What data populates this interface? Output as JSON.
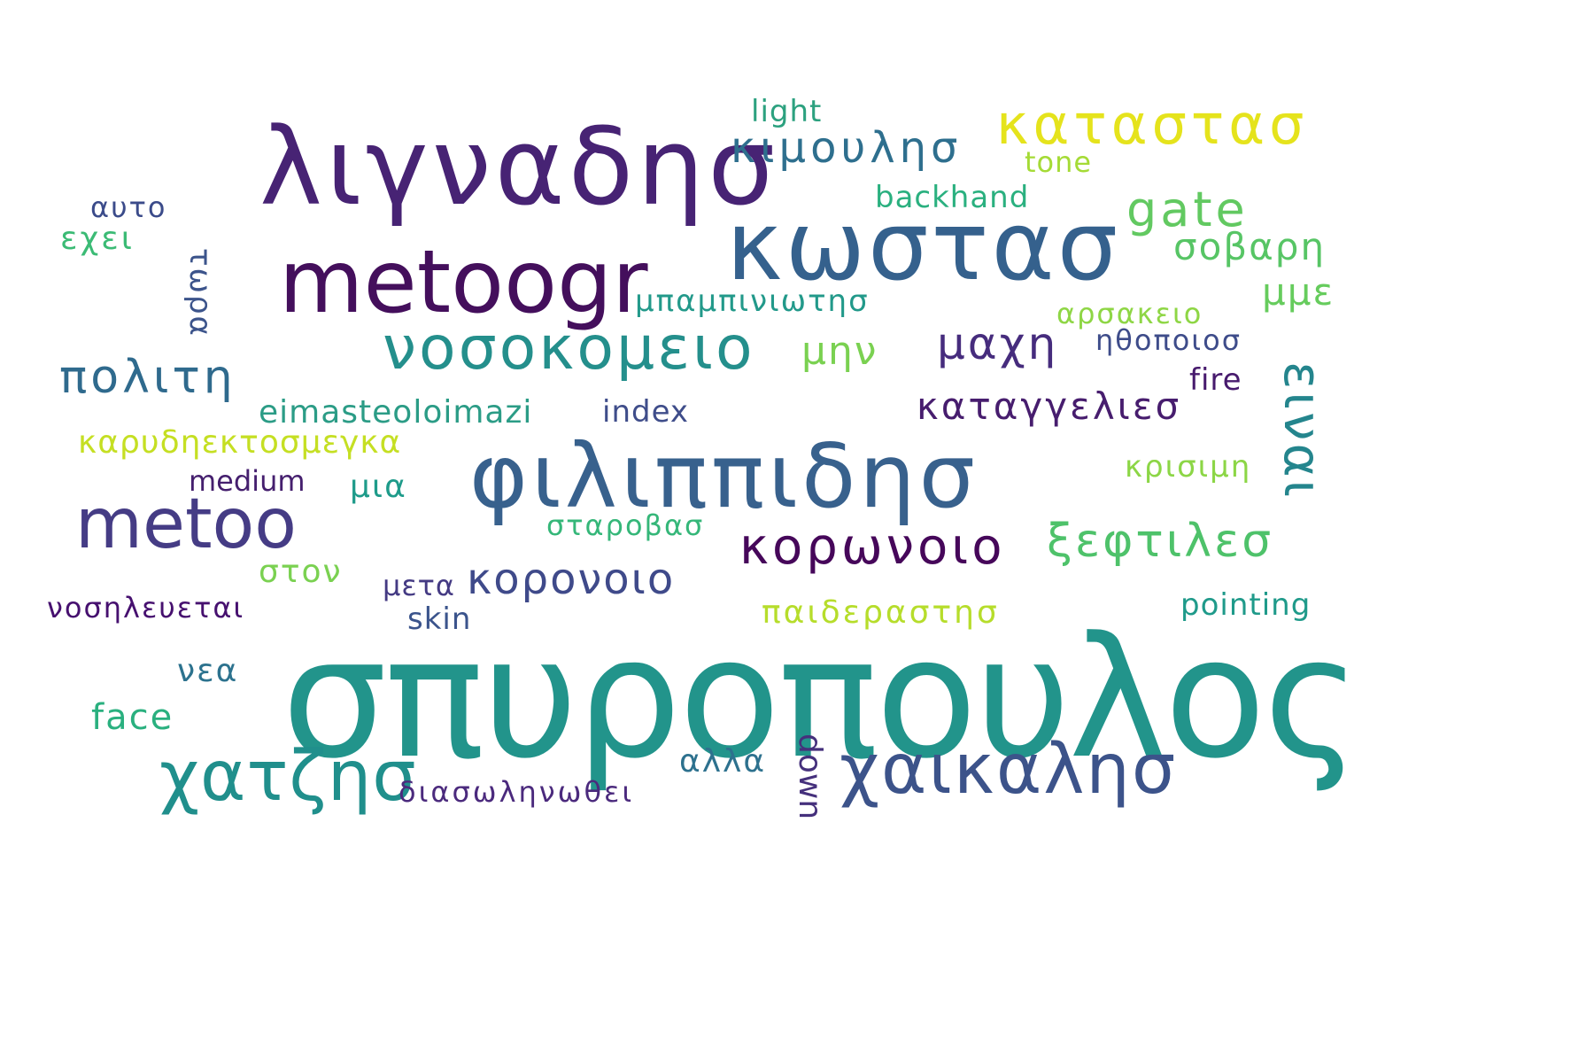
{
  "words": [
    {
      "text": "σπυροπουλος",
      "color": "#22948b"
    },
    {
      "text": "λιγναδησ",
      "color": "#472374"
    },
    {
      "text": "metoogr",
      "color": "#440f5c"
    },
    {
      "text": "κωστασ",
      "color": "#35618d"
    },
    {
      "text": "φιλιππιδησ",
      "color": "#38618d"
    },
    {
      "text": "metoo",
      "color": "#453c85"
    },
    {
      "text": "νοσοκομειο",
      "color": "#248f8c"
    },
    {
      "text": "χατζησ",
      "color": "#208f8c"
    },
    {
      "text": "χαικαλησ",
      "color": "#3c538a"
    },
    {
      "text": "κορωνοιο",
      "color": "#46075a"
    },
    {
      "text": "καταστασ",
      "color": "#e5e31c"
    },
    {
      "text": "κιμουλησ",
      "color": "#2e6f8e"
    },
    {
      "text": "gate",
      "color": "#62c961"
    },
    {
      "text": "πολιτη",
      "color": "#2f6a8d"
    },
    {
      "text": "ειναι",
      "color": "#24858d"
    },
    {
      "text": "ξεφτιλεσ",
      "color": "#4ec26a"
    },
    {
      "text": "μαχη",
      "color": "#462c7d"
    },
    {
      "text": "κορονοιο",
      "color": "#3f4a8a"
    },
    {
      "text": "σοβαρη",
      "color": "#57c565"
    },
    {
      "text": "μμε",
      "color": "#66cc5d"
    },
    {
      "text": "καταγγελιεσ",
      "color": "#471d6e"
    },
    {
      "text": "μην",
      "color": "#7ad151"
    },
    {
      "text": "παιδεραστησ",
      "color": "#b6dd2b"
    },
    {
      "text": "eimasteoloimazi",
      "color": "#2b9c86"
    },
    {
      "text": "καρυδηεκτοσμεγκα",
      "color": "#c5df23"
    },
    {
      "text": "μπαμπινιωτησ",
      "color": "#22998a"
    },
    {
      "text": "backhand",
      "color": "#2ab07f"
    },
    {
      "text": "αρσακειο",
      "color": "#8ed645"
    },
    {
      "text": "ηθοποιοσ",
      "color": "#3e4c8a"
    },
    {
      "text": "light",
      "color": "#2ca17f"
    },
    {
      "text": "tone",
      "color": "#a5db36"
    },
    {
      "text": "fire",
      "color": "#471a6d"
    },
    {
      "text": "κρισιμη",
      "color": "#8cd646"
    },
    {
      "text": "pointing",
      "color": "#1f9a8a"
    },
    {
      "text": "index",
      "color": "#3f4d8a"
    },
    {
      "text": "medium",
      "color": "#451f6e"
    },
    {
      "text": "μια",
      "color": "#1e9b8a"
    },
    {
      "text": "σταροβασ",
      "color": "#35b779"
    },
    {
      "text": "στον",
      "color": "#7ad151"
    },
    {
      "text": "μετα",
      "color": "#443a83"
    },
    {
      "text": "skin",
      "color": "#3b548c"
    },
    {
      "text": "νοσηλευεται",
      "color": "#46106f"
    },
    {
      "text": "νεα",
      "color": "#2c728e"
    },
    {
      "text": "face",
      "color": "#2ab07f"
    },
    {
      "text": "αλλα",
      "color": "#2d718e"
    },
    {
      "text": "down",
      "color": "#45307c"
    },
    {
      "text": "διασωληνωθει",
      "color": "#4b2a7d"
    },
    {
      "text": "αυτο",
      "color": "#3b4b8a"
    },
    {
      "text": "εχει",
      "color": "#3bbb75"
    },
    {
      "text": "τωρα",
      "color": "#3c548b"
    }
  ]
}
